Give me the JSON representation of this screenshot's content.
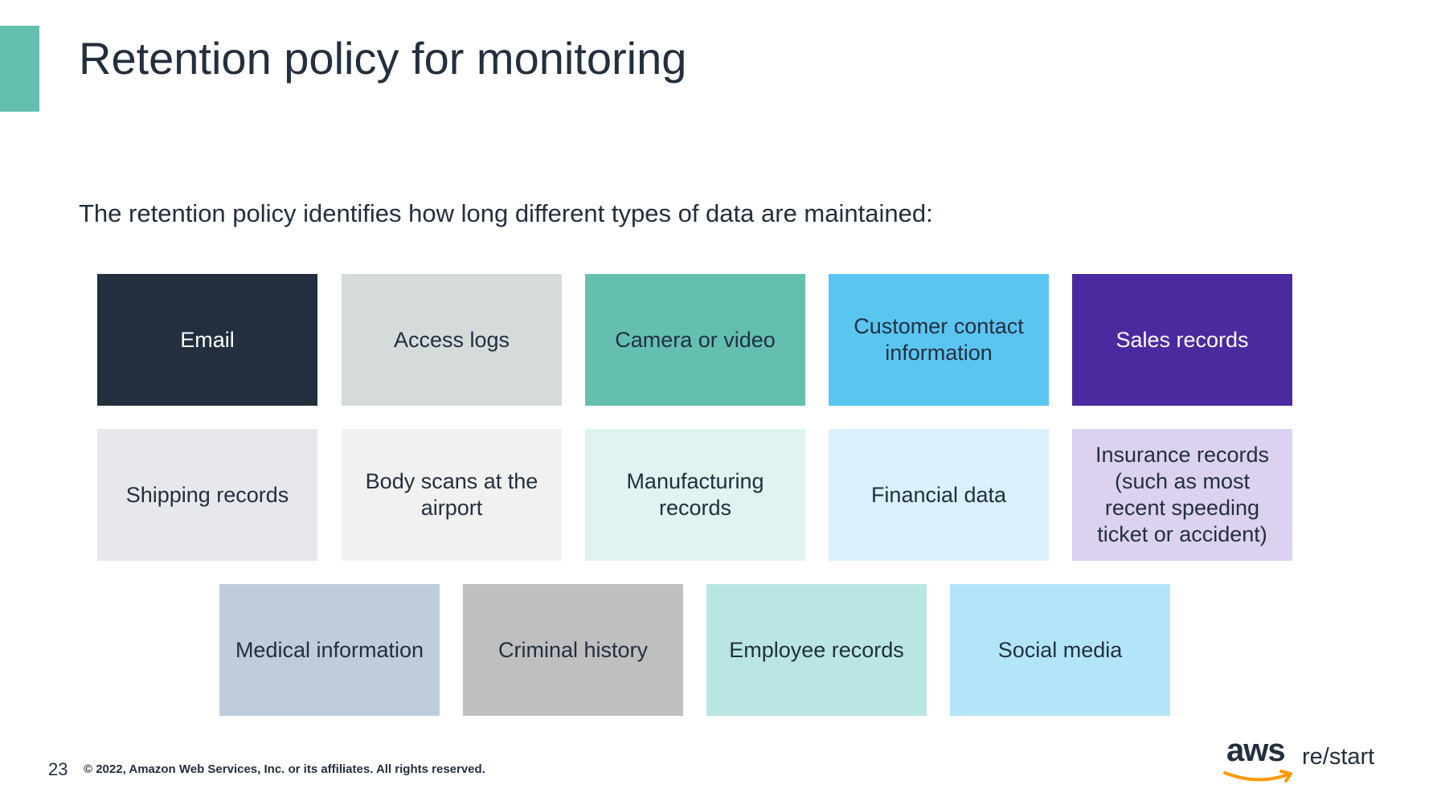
{
  "slide": {
    "title": "Retention policy for monitoring",
    "subtitle": "The retention policy identifies how long different types of data are maintained:"
  },
  "tiles": [
    {
      "label": "Email",
      "bg": "#232f3e",
      "fg": "#ffffff"
    },
    {
      "label": "Access logs",
      "bg": "#d5dbdb",
      "fg": "#232f3e"
    },
    {
      "label": "Camera or video",
      "bg": "#64bfb1",
      "fg": "#232f3e"
    },
    {
      "label": "Customer contact information",
      "bg": "#5bc5f2",
      "fg": "#232f3e"
    },
    {
      "label": "Sales records",
      "bg": "#4b2a9f",
      "fg": "#ffffff"
    },
    {
      "label": "Shipping records",
      "bg": "#e6e8ec",
      "fg": "#232f3e"
    },
    {
      "label": "Body scans at the airport",
      "bg": "#f1f1f1",
      "fg": "#232f3e"
    },
    {
      "label": "Manufacturing records",
      "bg": "#dff3f0",
      "fg": "#232f3e"
    },
    {
      "label": "Financial data",
      "bg": "#d9f1fb",
      "fg": "#232f3e"
    },
    {
      "label": "Insurance records (such as most recent speeding ticket or accident)",
      "bg": "#dcd1f0",
      "fg": "#232f3e"
    },
    {
      "label": "Medical information",
      "bg": "#bfccdb",
      "fg": "#232f3e"
    },
    {
      "label": "Criminal history",
      "bg": "#bfbfbf",
      "fg": "#232f3e"
    },
    {
      "label": "Employee records",
      "bg": "#b9e6e2",
      "fg": "#232f3e"
    },
    {
      "label": "Social media",
      "bg": "#b3e5f9",
      "fg": "#232f3e"
    }
  ],
  "footer": {
    "page_number": "23",
    "copyright": "© 2022, Amazon Web Services, Inc. or its affiliates. All rights reserved."
  },
  "logo": {
    "brand": "aws",
    "product": "re/start",
    "smile_color": "#ff9900"
  }
}
